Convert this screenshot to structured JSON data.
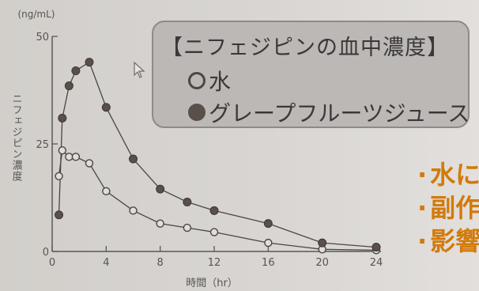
{
  "chart_data": {
    "type": "line",
    "y_unit": "(ng/mL)",
    "ylabel": "ニフェジピン濃度",
    "xlabel": "時間（hr）",
    "ylim": [
      0,
      50
    ],
    "xlim": [
      0,
      24
    ],
    "y_ticks": [
      0,
      25,
      50
    ],
    "x_ticks": [
      0,
      4,
      8,
      12,
      16,
      20,
      24
    ],
    "grid": false,
    "series": [
      {
        "name": "水",
        "marker": "open-circle",
        "points": [
          [
            0.5,
            17.5
          ],
          [
            0.75,
            23.5
          ],
          [
            1.25,
            22
          ],
          [
            1.75,
            22
          ],
          [
            2.75,
            20.5
          ],
          [
            4,
            14
          ],
          [
            6,
            9.5
          ],
          [
            8,
            6.5
          ],
          [
            10,
            5.5
          ],
          [
            12,
            4.5
          ],
          [
            16,
            2.0
          ],
          [
            20,
            0.5
          ],
          [
            24,
            0.3
          ]
        ]
      },
      {
        "name": "グレープフルーツジュース",
        "marker": "filled-circle",
        "points": [
          [
            0.5,
            8.5
          ],
          [
            0.75,
            31
          ],
          [
            1.25,
            38.5
          ],
          [
            1.75,
            42
          ],
          [
            2.75,
            44
          ],
          [
            4,
            33.5
          ],
          [
            6,
            21.5
          ],
          [
            8,
            14.5
          ],
          [
            10,
            11.5
          ],
          [
            12,
            9.5
          ],
          [
            16,
            6.5
          ],
          [
            20,
            2.0
          ],
          [
            24,
            1.0
          ]
        ]
      }
    ],
    "title": "【ニフェジピンの血中濃度】"
  },
  "legend": {
    "title": "【ニフェジピンの血中濃度】",
    "water_label": "水",
    "grape_label": "グレープフルーツジュース"
  },
  "bullets": [
    "水に",
    "副作",
    "影響"
  ],
  "colors": {
    "axis": "#5b5757",
    "series": "#4a4545",
    "filled_marker": "#5a4f4a",
    "accent": "#d27a0a"
  }
}
